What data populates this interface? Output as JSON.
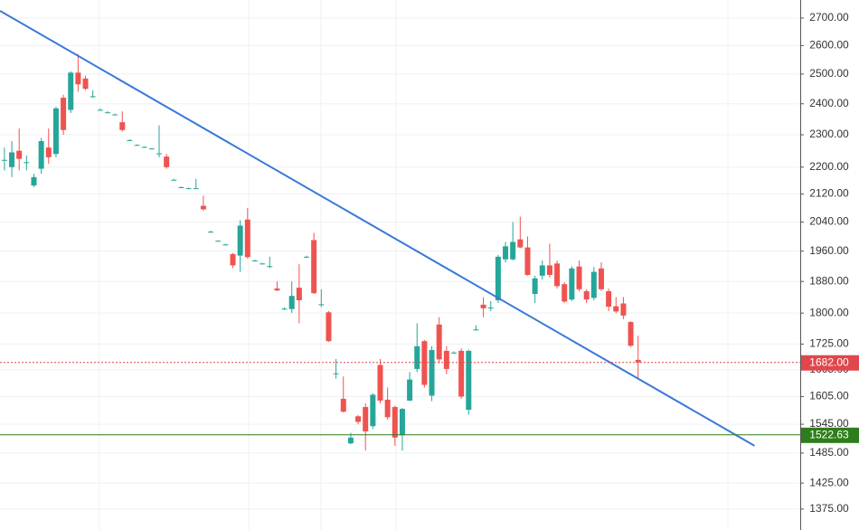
{
  "chart_data": {
    "type": "candlestick",
    "log_scale": true,
    "grid": true,
    "up_color": "#26a69a",
    "down_color": "#ef5350",
    "xlim": [
      -0.6,
      108
    ],
    "ylim": [
      1336,
      2768
    ],
    "yticks": [
      {
        "value": 2700,
        "label": "2700.00"
      },
      {
        "value": 2600,
        "label": "2600.00"
      },
      {
        "value": 2500,
        "label": "2500.00"
      },
      {
        "value": 2400,
        "label": "2400.00"
      },
      {
        "value": 2300,
        "label": "2300.00"
      },
      {
        "value": 2200,
        "label": "2200.00"
      },
      {
        "value": 2120,
        "label": "2120.00"
      },
      {
        "value": 2040,
        "label": "2040.00"
      },
      {
        "value": 1960,
        "label": "1960.00"
      },
      {
        "value": 1880,
        "label": "1880.00"
      },
      {
        "value": 1800,
        "label": "1800.00"
      },
      {
        "value": 1725,
        "label": "1725.00"
      },
      {
        "value": 1665,
        "label": "1665.00"
      },
      {
        "value": 1605,
        "label": "1605.00"
      },
      {
        "value": 1545,
        "label": "1545.00"
      },
      {
        "value": 1485,
        "label": "1485.00"
      },
      {
        "value": 1425,
        "label": "1425.00"
      },
      {
        "value": 1375,
        "label": "1375.00"
      }
    ],
    "open": [
      2220,
      2200,
      2250,
      2215,
      2145,
      2195,
      2260,
      2240,
      2420,
      2380,
      2505,
      2485,
      2425,
      2380,
      2372,
      2365,
      2340,
      2283,
      2268,
      2262,
      2257,
      2242,
      2232,
      2162,
      2140,
      2137,
      2137,
      2086,
      2013,
      1988,
      1978,
      1952,
      1948,
      2047,
      1935,
      1927,
      1920,
      1862,
      1811,
      1810,
      1864,
      1945,
      1990,
      1822,
      1802,
      1657,
      1600,
      1505,
      1562,
      1582,
      1541,
      1676,
      1598,
      1582,
      1522,
      1596,
      1667,
      1732,
      1607,
      1772,
      1709,
      1705,
      1709,
      1576,
      1760,
      1821,
      1814,
      1832,
      1938,
      1938,
      1992,
      1970,
      1848,
      1895,
      1922,
      1927,
      1873,
      1834,
      1919,
      1855,
      1838,
      1914,
      1855,
      1817,
      1824,
      1778,
      1688
    ],
    "high": [
      2260,
      2280,
      2320,
      2235,
      2180,
      2290,
      2320,
      2390,
      2430,
      2510,
      2570,
      2495,
      2445,
      2385,
      2376,
      2368,
      2375,
      2286,
      2270,
      2264,
      2259,
      2330,
      2240,
      2165,
      2142,
      2139,
      2165,
      2115,
      2016,
      1990,
      1980,
      1955,
      2045,
      2080,
      1937,
      1929,
      1945,
      1880,
      1814,
      1880,
      1925,
      1948,
      2010,
      1860,
      1805,
      1690,
      1650,
      1527,
      1565,
      1590,
      1612,
      1690,
      1625,
      1585,
      1580,
      1660,
      1775,
      1735,
      1720,
      1790,
      1720,
      1708,
      1715,
      1712,
      1770,
      1840,
      1830,
      1950,
      1985,
      2040,
      2055,
      2000,
      1895,
      1935,
      1980,
      1935,
      1878,
      1920,
      1935,
      1860,
      1918,
      1930,
      1862,
      1840,
      1840,
      1780,
      1745
    ],
    "low": [
      2190,
      2170,
      2190,
      2190,
      2140,
      2180,
      2210,
      2230,
      2300,
      2370,
      2440,
      2445,
      2420,
      2378,
      2370,
      2362,
      2310,
      2280,
      2266,
      2260,
      2255,
      2230,
      2195,
      2160,
      2138,
      2135,
      2135,
      2072,
      2010,
      1986,
      1976,
      1915,
      1905,
      1940,
      1933,
      1925,
      1915,
      1855,
      1808,
      1800,
      1775,
      1942,
      1848,
      1815,
      1730,
      1645,
      1570,
      1503,
      1545,
      1490,
      1535,
      1590,
      1555,
      1500,
      1490,
      1595,
      1660,
      1625,
      1595,
      1680,
      1655,
      1702,
      1600,
      1565,
      1757,
      1790,
      1805,
      1825,
      1930,
      1935,
      1968,
      1895,
      1825,
      1885,
      1890,
      1862,
      1825,
      1830,
      1855,
      1825,
      1832,
      1856,
      1805,
      1800,
      1785,
      1718,
      1645
    ],
    "close": [
      2222,
      2245,
      2225,
      2215,
      2170,
      2280,
      2230,
      2385,
      2315,
      2505,
      2465,
      2450,
      2425,
      2380,
      2372,
      2365,
      2315,
      2283,
      2268,
      2262,
      2257,
      2242,
      2200,
      2162,
      2140,
      2137,
      2137,
      2076,
      2013,
      1988,
      1978,
      1922,
      2030,
      1944,
      1935,
      1927,
      1920,
      1857,
      1811,
      1843,
      1832,
      1945,
      1850,
      1822,
      1732,
      1657,
      1572,
      1517,
      1550,
      1530,
      1609,
      1596,
      1560,
      1517,
      1578,
      1643,
      1720,
      1631,
      1711,
      1689,
      1667,
      1705,
      1605,
      1709,
      1760,
      1812,
      1814,
      1945,
      1973,
      1985,
      1970,
      1897,
      1888,
      1922,
      1897,
      1868,
      1829,
      1914,
      1860,
      1834,
      1905,
      1860,
      1816,
      1804,
      1794,
      1721,
      1682
    ],
    "trendline": {
      "x": [
        -0.6,
        101.8
      ],
      "y": [
        2727,
        1500
      ],
      "color": "#3a78d8"
    },
    "price_lines": [
      {
        "value": 1682,
        "label": "1682.00",
        "color": "#e0474c",
        "style": "dotted"
      },
      {
        "value": 1522.63,
        "label": "1522.63",
        "color": "#2e7d1b",
        "style": "solid"
      }
    ]
  }
}
